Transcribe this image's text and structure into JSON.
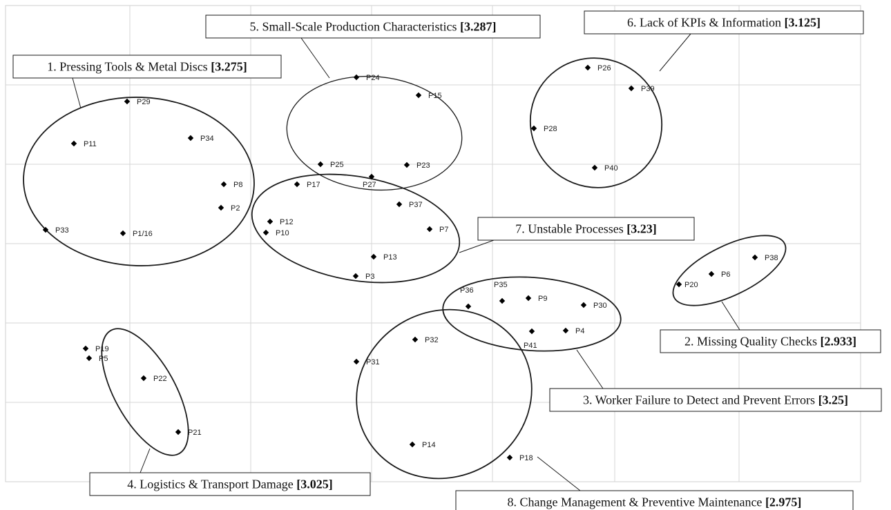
{
  "chart_data": {
    "type": "scatter",
    "title": "",
    "xlabel": "",
    "ylabel": "",
    "grid": true,
    "points": [
      {
        "label": "P29",
        "cluster": 1
      },
      {
        "label": "P11",
        "cluster": 1
      },
      {
        "label": "P34",
        "cluster": 1
      },
      {
        "label": "P8",
        "cluster": 1
      },
      {
        "label": "P2",
        "cluster": 1
      },
      {
        "label": "P33",
        "cluster": 1
      },
      {
        "label": "P1/16",
        "cluster": 1
      },
      {
        "label": "P24",
        "cluster": 5
      },
      {
        "label": "P15",
        "cluster": 5
      },
      {
        "label": "P25",
        "cluster": 5
      },
      {
        "label": "P23",
        "cluster": 5
      },
      {
        "label": "P27",
        "cluster": 5
      },
      {
        "label": "P26",
        "cluster": 6
      },
      {
        "label": "P39",
        "cluster": 6
      },
      {
        "label": "P28",
        "cluster": 6
      },
      {
        "label": "P40",
        "cluster": 6
      },
      {
        "label": "P17",
        "cluster": 7
      },
      {
        "label": "P37",
        "cluster": 7
      },
      {
        "label": "P12",
        "cluster": 7
      },
      {
        "label": "P10",
        "cluster": 7
      },
      {
        "label": "P7",
        "cluster": 7
      },
      {
        "label": "P13",
        "cluster": 7
      },
      {
        "label": "P3",
        "cluster": 7
      },
      {
        "label": "P38",
        "cluster": 2
      },
      {
        "label": "P6",
        "cluster": 2
      },
      {
        "label": "P20",
        "cluster": 2
      },
      {
        "label": "P36",
        "cluster": 3
      },
      {
        "label": "P35",
        "cluster": 3
      },
      {
        "label": "P9",
        "cluster": 3
      },
      {
        "label": "P30",
        "cluster": 3
      },
      {
        "label": "P4",
        "cluster": 3
      },
      {
        "label": "P41",
        "cluster": 3
      },
      {
        "label": "P19",
        "cluster": 4
      },
      {
        "label": "P5",
        "cluster": 4
      },
      {
        "label": "P22",
        "cluster": 4
      },
      {
        "label": "P21",
        "cluster": 4
      },
      {
        "label": "P32",
        "cluster": 8
      },
      {
        "label": "P31",
        "cluster": 8
      },
      {
        "label": "P14",
        "cluster": 8
      },
      {
        "label": "P18",
        "cluster": 8
      }
    ],
    "clusters": [
      {
        "id": 1,
        "name": "1. Pressing Tools & Metal Discs",
        "score": "[3.275]"
      },
      {
        "id": 2,
        "name": "2. Missing Quality Checks",
        "score": "[2.933]"
      },
      {
        "id": 3,
        "name": "3. Worker Failure to Detect and Prevent Errors",
        "score": "[3.25]"
      },
      {
        "id": 4,
        "name": "4. Logistics & Transport Damage",
        "score": "[3.025]"
      },
      {
        "id": 5,
        "name": "5. Small-Scale Production Characteristics",
        "score": "[3.287]"
      },
      {
        "id": 6,
        "name": "6. Lack of KPIs & Information",
        "score": "[3.125]"
      },
      {
        "id": 7,
        "name": "7. Unstable Processes",
        "score": "[3.23]"
      },
      {
        "id": 8,
        "name": "8. Change Management & Preventive Maintenance",
        "score": "[2.975]"
      }
    ]
  }
}
